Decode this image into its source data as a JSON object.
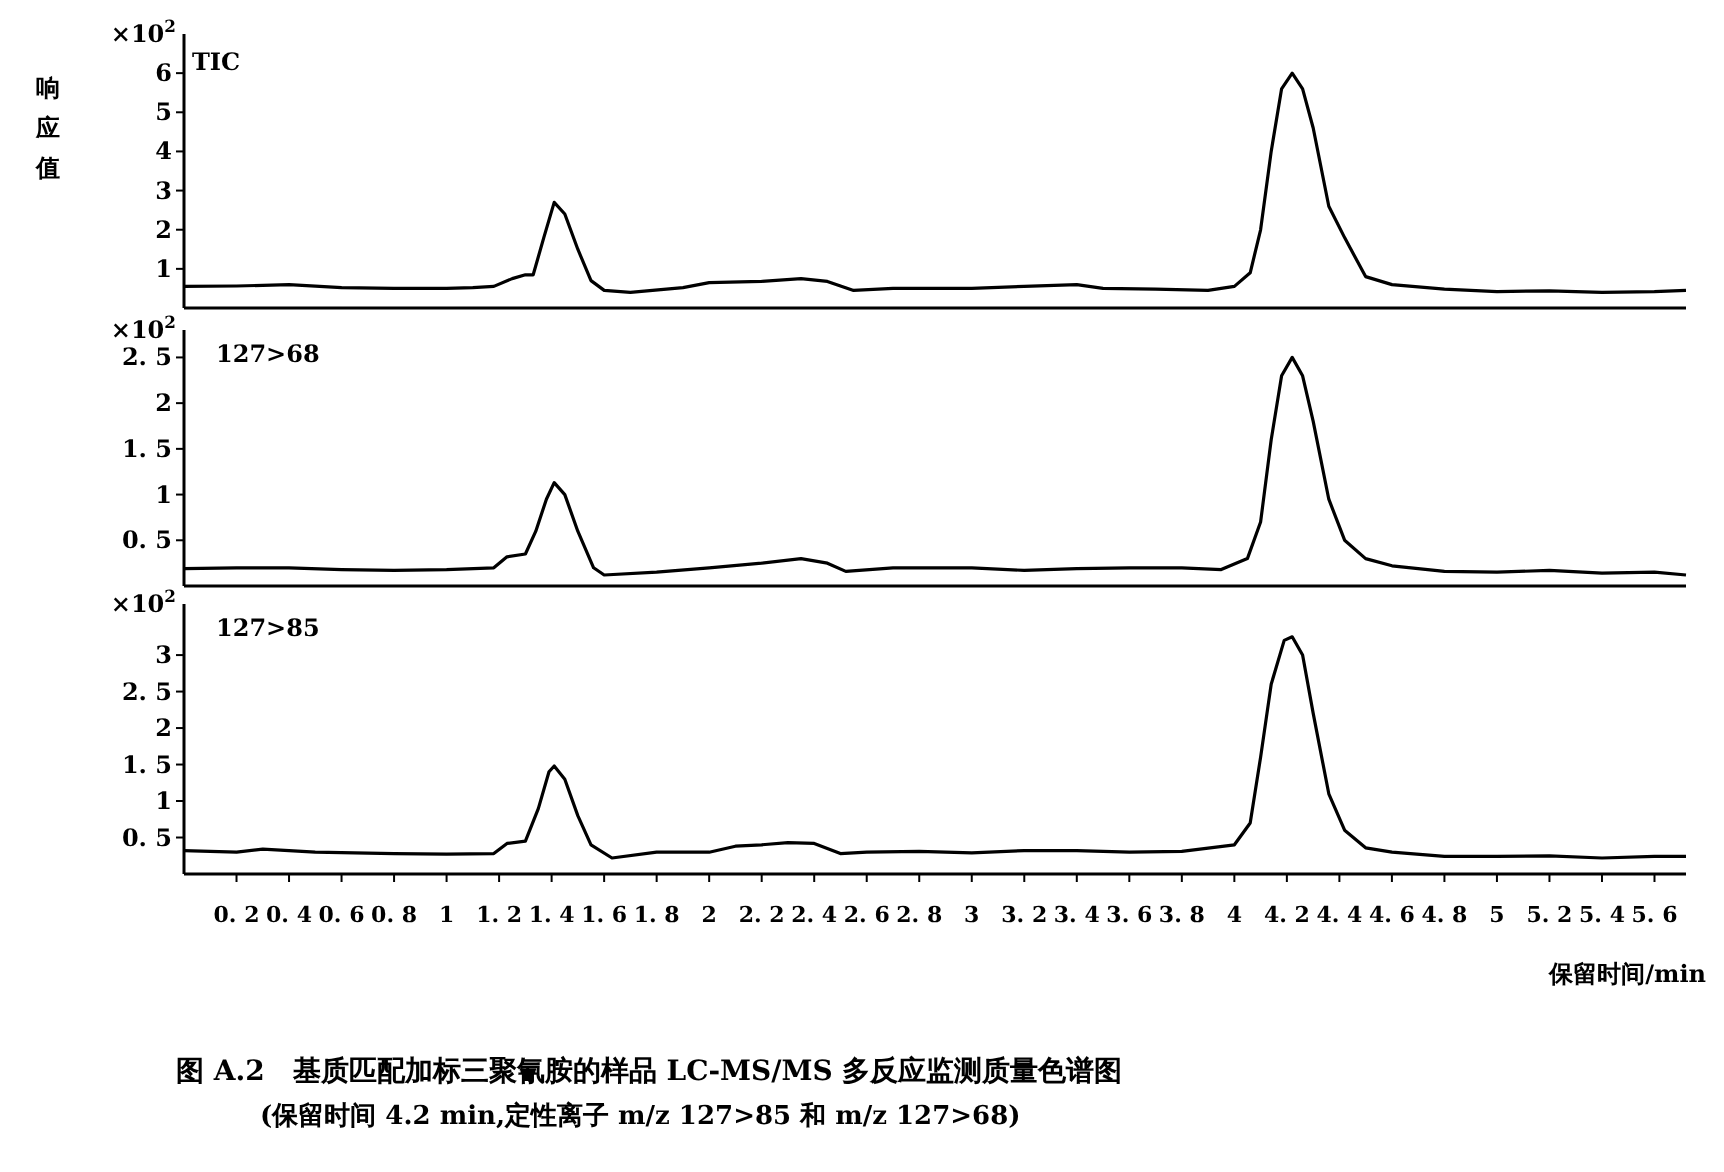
{
  "chart_data": [
    {
      "type": "line",
      "ylabel": "×10$^{2}$",
      "annotations": [
        "响应值"
      ],
      "tick_labels": "y",
      "grid": false,
      "marker": "none",
      "line_style": "solid",
      "xlim": [
        0,
        5.72
      ],
      "ylim": [
        0,
        7
      ],
      "yticks": [
        1,
        2,
        3,
        4,
        5,
        6
      ],
      "x": [
        0,
        0.2,
        0.4,
        0.6,
        0.8,
        1.0,
        1.1,
        1.18,
        1.25,
        1.3,
        1.33,
        1.37,
        1.41,
        1.45,
        1.5,
        1.55,
        1.6,
        1.7,
        1.9,
        2.0,
        2.2,
        2.35,
        2.45,
        2.55,
        2.7,
        3.0,
        3.2,
        3.4,
        3.5,
        3.7,
        3.9,
        4.0,
        4.06,
        4.1,
        4.14,
        4.18,
        4.22,
        4.26,
        4.3,
        4.36,
        4.42,
        4.5,
        4.6,
        4.8,
        5.0,
        5.2,
        5.4,
        5.6,
        5.72
      ],
      "series": [
        {
          "name": "TIC",
          "color": "#000000",
          "values": [
            0.55,
            0.56,
            0.6,
            0.52,
            0.5,
            0.5,
            0.52,
            0.55,
            0.75,
            0.85,
            0.85,
            1.8,
            2.7,
            2.4,
            1.5,
            0.7,
            0.45,
            0.4,
            0.52,
            0.65,
            0.68,
            0.75,
            0.68,
            0.45,
            0.5,
            0.5,
            0.55,
            0.6,
            0.5,
            0.48,
            0.45,
            0.55,
            0.9,
            2.0,
            4.0,
            5.6,
            6.0,
            5.6,
            4.6,
            2.6,
            1.8,
            0.8,
            0.6,
            0.48,
            0.42,
            0.44,
            0.4,
            0.42,
            0.45
          ]
        }
      ]
    },
    {
      "type": "line",
      "ylabel": "×10$^{2}$",
      "tick_labels": "y",
      "grid": false,
      "marker": "none",
      "line_style": "solid",
      "xlim": [
        0,
        5.72
      ],
      "ylim": [
        0,
        2.8
      ],
      "yticks": [
        {
          "value": 0.5,
          "label": "0. 5"
        },
        1,
        {
          "value": 1.5,
          "label": "1. 5"
        },
        2,
        {
          "value": 2.5,
          "label": "2. 5"
        }
      ],
      "x": [
        0,
        0.2,
        0.4,
        0.6,
        0.8,
        1.0,
        1.18,
        1.23,
        1.3,
        1.34,
        1.38,
        1.41,
        1.45,
        1.5,
        1.56,
        1.6,
        1.8,
        2.0,
        2.2,
        2.35,
        2.45,
        2.52,
        2.7,
        3.0,
        3.2,
        3.4,
        3.6,
        3.8,
        3.95,
        4.05,
        4.1,
        4.14,
        4.18,
        4.22,
        4.26,
        4.3,
        4.36,
        4.42,
        4.5,
        4.6,
        4.8,
        5.0,
        5.2,
        5.4,
        5.6,
        5.72
      ],
      "series": [
        {
          "name": "127>68",
          "color": "#000000",
          "values": [
            0.19,
            0.2,
            0.2,
            0.18,
            0.17,
            0.18,
            0.2,
            0.32,
            0.35,
            0.6,
            0.95,
            1.13,
            1.0,
            0.6,
            0.2,
            0.12,
            0.15,
            0.2,
            0.25,
            0.3,
            0.25,
            0.16,
            0.2,
            0.2,
            0.17,
            0.19,
            0.2,
            0.2,
            0.18,
            0.3,
            0.7,
            1.6,
            2.3,
            2.5,
            2.3,
            1.8,
            0.95,
            0.5,
            0.3,
            0.22,
            0.16,
            0.15,
            0.17,
            0.14,
            0.15,
            0.12
          ]
        }
      ]
    },
    {
      "type": "line",
      "ylabel": "×10$^{2}$",
      "xlabel": "保留时间/min",
      "annotations": [
        "图 A.2　基质匹配加标三聚氰胺的样品 LC-MS/MS 多反应监测质量色谱图",
        "(保留时间 4.2 min,定性离子 m/z 127>85 和 m/z 127>68)"
      ],
      "grid": false,
      "marker": "none",
      "line_style": "solid",
      "xlim": [
        0,
        5.72
      ],
      "ylim": [
        0,
        3.7
      ],
      "xticks": [
        {
          "value": 0.2,
          "label": "0. 2"
        },
        {
          "value": 0.4,
          "label": "0. 4"
        },
        {
          "value": 0.6,
          "label": "0. 6"
        },
        {
          "value": 0.8,
          "label": "0. 8"
        },
        1,
        {
          "value": 1.2,
          "label": "1. 2"
        },
        {
          "value": 1.4,
          "label": "1. 4"
        },
        {
          "value": 1.6,
          "label": "1. 6"
        },
        {
          "value": 1.8,
          "label": "1. 8"
        },
        2,
        {
          "value": 2.2,
          "label": "2. 2"
        },
        {
          "value": 2.4,
          "label": "2. 4"
        },
        {
          "value": 2.6,
          "label": "2. 6"
        },
        {
          "value": 2.8,
          "label": "2. 8"
        },
        3,
        {
          "value": 3.2,
          "label": "3. 2"
        },
        {
          "value": 3.4,
          "label": "3. 4"
        },
        {
          "value": 3.6,
          "label": "3. 6"
        },
        {
          "value": 3.8,
          "label": "3. 8"
        },
        4,
        {
          "value": 4.2,
          "label": "4. 2"
        },
        {
          "value": 4.4,
          "label": "4. 4"
        },
        {
          "value": 4.6,
          "label": "4. 6"
        },
        {
          "value": 4.8,
          "label": "4. 8"
        },
        5,
        {
          "value": 5.2,
          "label": "5. 2"
        },
        {
          "value": 5.4,
          "label": "5. 4"
        },
        {
          "value": 5.6,
          "label": "5. 6"
        }
      ],
      "yticks": [
        {
          "value": 0.5,
          "label": "0. 5"
        },
        1,
        {
          "value": 1.5,
          "label": "1. 5"
        },
        2,
        {
          "value": 2.5,
          "label": "2. 5"
        },
        3
      ],
      "x": [
        0,
        0.2,
        0.3,
        0.5,
        0.8,
        1.0,
        1.18,
        1.23,
        1.3,
        1.35,
        1.39,
        1.41,
        1.45,
        1.5,
        1.55,
        1.63,
        1.8,
        2.0,
        2.1,
        2.2,
        2.3,
        2.4,
        2.5,
        2.6,
        2.8,
        3.0,
        3.2,
        3.4,
        3.6,
        3.8,
        4.0,
        4.06,
        4.1,
        4.14,
        4.19,
        4.22,
        4.26,
        4.3,
        4.36,
        4.42,
        4.5,
        4.6,
        4.8,
        5.0,
        5.2,
        5.4,
        5.6,
        5.72
      ],
      "series": [
        {
          "name": "127>85",
          "color": "#000000",
          "values": [
            0.32,
            0.3,
            0.34,
            0.3,
            0.28,
            0.27,
            0.28,
            0.42,
            0.45,
            0.9,
            1.4,
            1.48,
            1.3,
            0.8,
            0.4,
            0.22,
            0.3,
            0.3,
            0.38,
            0.4,
            0.43,
            0.42,
            0.28,
            0.3,
            0.31,
            0.29,
            0.32,
            0.32,
            0.3,
            0.31,
            0.4,
            0.7,
            1.6,
            2.6,
            3.2,
            3.25,
            3.0,
            2.2,
            1.1,
            0.6,
            0.36,
            0.3,
            0.24,
            0.24,
            0.25,
            0.22,
            0.24,
            0.24
          ]
        }
      ]
    }
  ]
}
